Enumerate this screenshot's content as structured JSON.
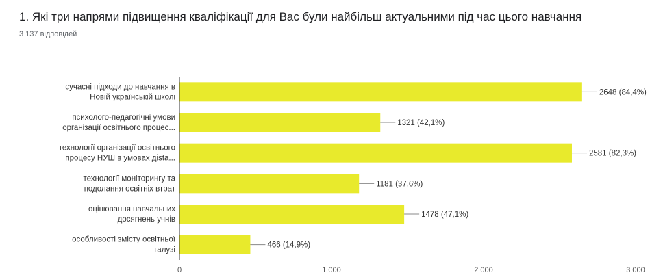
{
  "question": {
    "title": "1. Які три напрями підвищення кваліфікації для Вас були найбільш актуальними під час цього навчання",
    "responses": "3 137 відповідей"
  },
  "colors": {
    "bar": "#e8ea2c",
    "axis": "#333333",
    "grid": "#e0e0e0"
  },
  "chart_data": {
    "type": "bar",
    "orientation": "horizontal",
    "categories": [
      [
        "сучасні підходи до навчання в",
        "Новій українській школі"
      ],
      [
        "психолого-педагогічні умови",
        "організації освітнього процес..."
      ],
      [
        "технології організації освітнього",
        "процесу НУШ в умовах дista..."
      ],
      [
        "технології моніторингу та",
        "подолання освітніх втрат"
      ],
      [
        "оцінювання навчальних",
        "досягнень учнів"
      ],
      [
        "особливості змісту освітньої",
        "галузі"
      ]
    ],
    "values": [
      2648,
      1321,
      2581,
      1181,
      1478,
      466
    ],
    "value_labels": [
      "2648 (84,4%)",
      "1321 (42,1%)",
      "2581 (82,3%)",
      "1181 (37,6%)",
      "1478 (47,1%)",
      "466 (14,9%)"
    ],
    "xlim": [
      0,
      3000
    ],
    "x_ticks": [
      0,
      1000,
      2000,
      3000
    ],
    "x_tick_labels": [
      "0",
      "1 000",
      "2 000",
      "3 000"
    ],
    "grid": false
  }
}
